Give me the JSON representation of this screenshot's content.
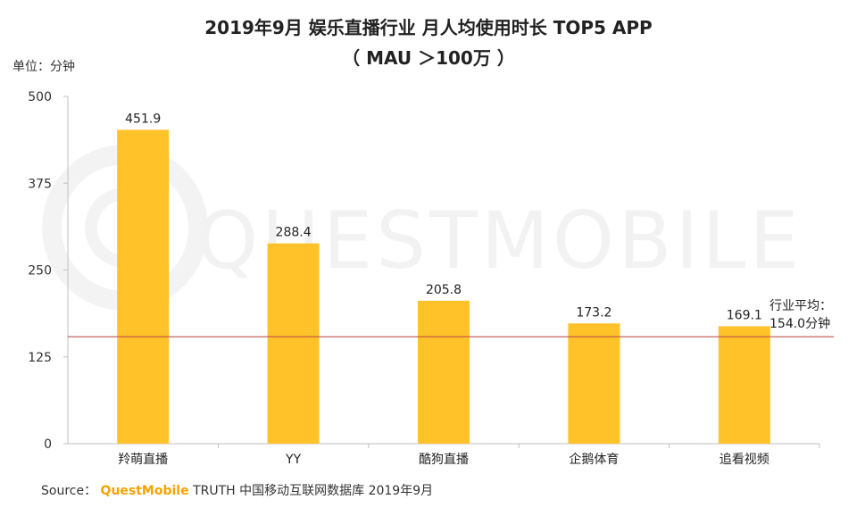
{
  "chart_data": {
    "type": "bar",
    "title": "2019年9月 娱乐直播行业 月人均使用时长 TOP5 APP",
    "subtitle": "（ MAU ＞100万 ）",
    "ylabel": "单位：分钟",
    "xlabel": "",
    "categories": [
      "羚萌直播",
      "YY",
      "酷狗直播",
      "企鹅体育",
      "追看视频"
    ],
    "values": [
      451.9,
      288.4,
      205.8,
      173.2,
      169.1
    ],
    "value_labels": [
      "451.9",
      "288.4",
      "205.8",
      "173.2",
      "169.1"
    ],
    "ylim": [
      0,
      500
    ],
    "yticks": [
      0,
      125,
      250,
      375,
      500
    ],
    "ytick_labels": [
      "0",
      "125",
      "250",
      "375",
      "500"
    ],
    "bar_color": "#ffc229",
    "reference_line": {
      "value": 154.0,
      "label_line1": "行业平均：",
      "label_line2": "154.0分钟",
      "color": "#c0504d"
    },
    "grid": false,
    "legend": "none"
  },
  "watermark": "QUESTMOBILE",
  "source": {
    "prefix": "Source：",
    "brand": "QuestMobile",
    "rest": "TRUTH 中国移动互联网数据库 2019年9月"
  }
}
